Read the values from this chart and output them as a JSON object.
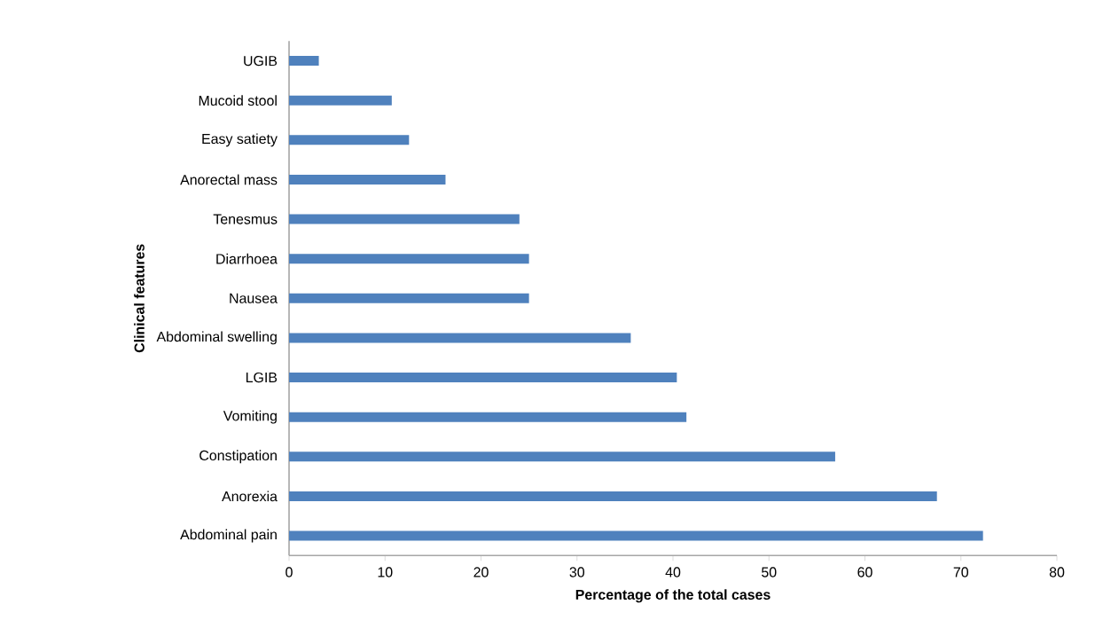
{
  "chart_data": {
    "type": "bar",
    "orientation": "horizontal",
    "xlabel": "Percentage of the total cases",
    "ylabel": "Clinical features",
    "categories": [
      "UGIB",
      "Mucoid stool",
      "Easy satiety",
      "Anorectal mass",
      "Tenesmus",
      "Diarrhoea",
      "Nausea",
      "Abdominal swelling",
      "LGIB",
      "Vomiting",
      "Constipation",
      "Anorexia",
      "Abdominal pain"
    ],
    "values": [
      3.1,
      10.7,
      12.5,
      16.3,
      24.0,
      25.0,
      25.0,
      35.6,
      40.4,
      41.4,
      56.9,
      67.5,
      72.3
    ],
    "color": "#4f81bd",
    "xlim": [
      0,
      80
    ],
    "xticks": [
      0,
      10,
      20,
      30,
      40,
      50,
      60,
      70,
      80
    ],
    "grid": false
  }
}
